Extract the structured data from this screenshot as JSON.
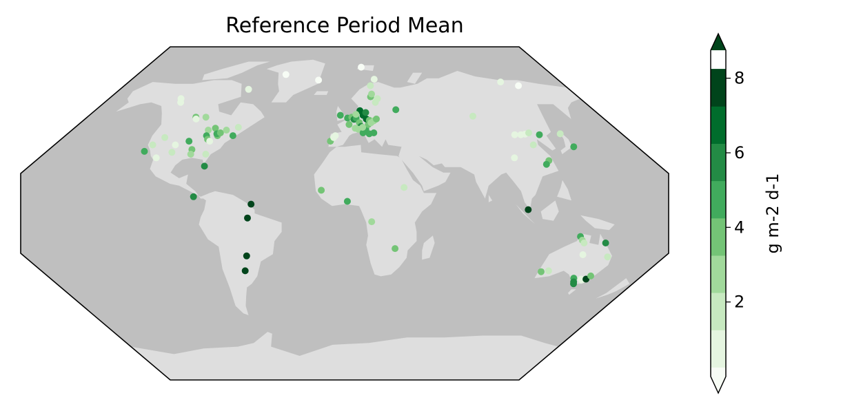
{
  "title": "Reference Period Mean",
  "colorbar": {
    "label": "g m-2 d-1",
    "ticks": [
      2,
      4,
      6,
      8
    ],
    "vmin": 0,
    "vmax": 8.75,
    "bounds": [
      0,
      0.25,
      1.25,
      2.25,
      3.25,
      4.25,
      5.25,
      6.25,
      7.25,
      8.25,
      8.75
    ],
    "colors": [
      "#f7fcf5",
      "#e5f5e0",
      "#c7e9c0",
      "#a1d99b",
      "#74c476",
      "#41ab5d",
      "#238b45",
      "#006d2c",
      "#00441b"
    ],
    "extend": "both"
  },
  "colors": {
    "ocean": "#bfbfbf",
    "land": "#dedede"
  },
  "sites": [
    {
      "lon": -125,
      "lat": 62,
      "value": 0.6
    },
    {
      "lon": -123,
      "lat": 60,
      "value": 0.8
    },
    {
      "lon": -115,
      "lat": 41,
      "value": 2.0
    },
    {
      "lon": -119,
      "lat": 37,
      "value": 1.8
    },
    {
      "lon": -121,
      "lat": 33.5,
      "value": 4.8
    },
    {
      "lon": -111,
      "lat": 30,
      "value": 0.4
    },
    {
      "lon": -104,
      "lat": 52,
      "value": 4.0
    },
    {
      "lon": -103,
      "lat": 51,
      "value": 1.0
    },
    {
      "lon": -97,
      "lat": 52,
      "value": 2.4
    },
    {
      "lon": -105,
      "lat": 37,
      "value": 1.0
    },
    {
      "lon": -104,
      "lat": 33,
      "value": 1.3
    },
    {
      "lon": -93,
      "lat": 34.5,
      "value": 3.8
    },
    {
      "lon": -92,
      "lat": 32,
      "value": 3.0
    },
    {
      "lon": -98,
      "lat": 39,
      "value": 4.5
    },
    {
      "lon": -90,
      "lat": 45,
      "value": 2.6
    },
    {
      "lon": -89,
      "lat": 42,
      "value": 4.8
    },
    {
      "lon": -87,
      "lat": 40,
      "value": 4.2
    },
    {
      "lon": -85,
      "lat": 39,
      "value": 0.6
    },
    {
      "lon": -86,
      "lat": 46,
      "value": 4.0
    },
    {
      "lon": -82,
      "lat": 42,
      "value": 4.2
    },
    {
      "lon": -83,
      "lat": 43,
      "value": 5.0
    },
    {
      "lon": -81,
      "lat": 43.5,
      "value": 3.9
    },
    {
      "lon": -78,
      "lat": 45,
      "value": 3.2
    },
    {
      "lon": -72,
      "lat": 42,
      "value": 4.6
    },
    {
      "lon": -71,
      "lat": 46.5,
      "value": 2.0
    },
    {
      "lon": -83,
      "lat": 32,
      "value": 2.1
    },
    {
      "lon": -80,
      "lat": 25.5,
      "value": 5.6
    },
    {
      "lon": -77,
      "lat": 67,
      "value": 0.5
    },
    {
      "lon": -51,
      "lat": 75,
      "value": 0.2
    },
    {
      "lon": -22,
      "lat": 72,
      "value": 0.1
    },
    {
      "lon": -84,
      "lat": 9,
      "value": 6.2
    },
    {
      "lon": -52,
      "lat": 5,
      "value": 8.6
    },
    {
      "lon": -54,
      "lat": -2.5,
      "value": 8.3
    },
    {
      "lon": -55,
      "lat": -23,
      "value": 8.4
    },
    {
      "lon": -59,
      "lat": -31,
      "value": 8.1
    },
    {
      "lon": -9,
      "lat": 39,
      "value": 4.2
    },
    {
      "lon": -7,
      "lat": 41,
      "value": 0.5
    },
    {
      "lon": -6,
      "lat": 42,
      "value": 0.4
    },
    {
      "lon": -3,
      "lat": 53,
      "value": 4.5
    },
    {
      "lon": 2,
      "lat": 51.5,
      "value": 4.8
    },
    {
      "lon": 3,
      "lat": 48,
      "value": 3.5
    },
    {
      "lon": 5,
      "lat": 52,
      "value": 4.2
    },
    {
      "lon": 6.5,
      "lat": 50.8,
      "value": 5.3
    },
    {
      "lon": 8,
      "lat": 51.5,
      "value": 4.7
    },
    {
      "lon": 10,
      "lat": 49,
      "value": 3.6
    },
    {
      "lon": 11,
      "lat": 47,
      "value": 5.8
    },
    {
      "lon": 7,
      "lat": 46,
      "value": 2.8
    },
    {
      "lon": 9,
      "lat": 45.5,
      "value": 3.2
    },
    {
      "lon": 12,
      "lat": 43.5,
      "value": 4.4
    },
    {
      "lon": 14,
      "lat": 45.5,
      "value": 5.2
    },
    {
      "lon": 16,
      "lat": 48,
      "value": 3.6
    },
    {
      "lon": 13,
      "lat": 53,
      "value": 6.4
    },
    {
      "lon": 15,
      "lat": 51,
      "value": 6.8
    },
    {
      "lon": 17,
      "lat": 50.3,
      "value": 3.5
    },
    {
      "lon": 20,
      "lat": 50,
      "value": 3.0
    },
    {
      "lon": 11,
      "lat": 55.5,
      "value": 6.5
    },
    {
      "lon": 15,
      "lat": 54.5,
      "value": 5.8
    },
    {
      "lon": 18,
      "lat": 49,
      "value": 2.8
    },
    {
      "lon": 22,
      "lat": 51,
      "value": 3.8
    },
    {
      "lon": 19,
      "lat": 43.5,
      "value": 5.0
    },
    {
      "lon": 16,
      "lat": 43,
      "value": 4.6
    },
    {
      "lon": 12,
      "lat": 46.5,
      "value": 2.6
    },
    {
      "lon": 8,
      "lat": 53.5,
      "value": 3.0
    },
    {
      "lon": 23,
      "lat": 60,
      "value": 1.8
    },
    {
      "lon": 25,
      "lat": 62,
      "value": 2.2
    },
    {
      "lon": 20,
      "lat": 63,
      "value": 3.5
    },
    {
      "lon": 21,
      "lat": 64.5,
      "value": 2.8
    },
    {
      "lon": 25,
      "lat": 72.5,
      "value": 1.2
    },
    {
      "lon": 21,
      "lat": 69,
      "value": 1.5
    },
    {
      "lon": 15,
      "lat": 79,
      "value": 0.2
    },
    {
      "lon": 37,
      "lat": 56,
      "value": 4.5
    },
    {
      "lon": -13,
      "lat": 12.5,
      "value": 4.2
    },
    {
      "lon": 1.5,
      "lat": 6.5,
      "value": 4.8
    },
    {
      "lon": 15,
      "lat": -4.5,
      "value": 3.0
    },
    {
      "lon": 28,
      "lat": -19,
      "value": 3.5
    },
    {
      "lon": 33,
      "lat": 14,
      "value": 1.9
    },
    {
      "lon": 90,
      "lat": 52.5,
      "value": 1.3
    },
    {
      "lon": 130,
      "lat": 71,
      "value": 0.8
    },
    {
      "lon": 142,
      "lat": 69,
      "value": 0.2
    },
    {
      "lon": 110,
      "lat": 42.5,
      "value": 0.4
    },
    {
      "lon": 114,
      "lat": 42.5,
      "value": 0.8
    },
    {
      "lon": 117,
      "lat": 42.8,
      "value": 0.5
    },
    {
      "lon": 120,
      "lat": 43.5,
      "value": 1.8
    },
    {
      "lon": 126,
      "lat": 42.5,
      "value": 5.2
    },
    {
      "lon": 140,
      "lat": 43,
      "value": 1.8
    },
    {
      "lon": 141,
      "lat": 36,
      "value": 4.4
    },
    {
      "lon": 117,
      "lat": 37,
      "value": 2.0
    },
    {
      "lon": 100,
      "lat": 30,
      "value": 0.6
    },
    {
      "lon": 119,
      "lat": 28.5,
      "value": 4.2
    },
    {
      "lon": 116,
      "lat": 26.5,
      "value": 4.4
    },
    {
      "lon": 102,
      "lat": 2,
      "value": 7.5
    },
    {
      "lon": 131,
      "lat": -12.5,
      "value": 5.0
    },
    {
      "lon": 132,
      "lat": -14.5,
      "value": 2.6
    },
    {
      "lon": 133,
      "lat": -16,
      "value": 1.6
    },
    {
      "lon": 133,
      "lat": -22.3,
      "value": 0.4
    },
    {
      "lon": 145,
      "lat": -16,
      "value": 6.0
    },
    {
      "lon": 148,
      "lat": -23.5,
      "value": 2.2
    },
    {
      "lon": 117,
      "lat": -31.5,
      "value": 3.5
    },
    {
      "lon": 121,
      "lat": -31,
      "value": 1.9
    },
    {
      "lon": 140,
      "lat": -35,
      "value": 4.4
    },
    {
      "lon": 142,
      "lat": -37,
      "value": 5.4
    },
    {
      "lon": 143,
      "lat": -38,
      "value": 6.0
    },
    {
      "lon": 145,
      "lat": -35.5,
      "value": 1.0
    },
    {
      "lon": 146,
      "lat": -36,
      "value": 0.4
    },
    {
      "lon": 148,
      "lat": -35.5,
      "value": 8.2
    },
    {
      "lon": 149,
      "lat": -33.8,
      "value": 4.0
    }
  ]
}
